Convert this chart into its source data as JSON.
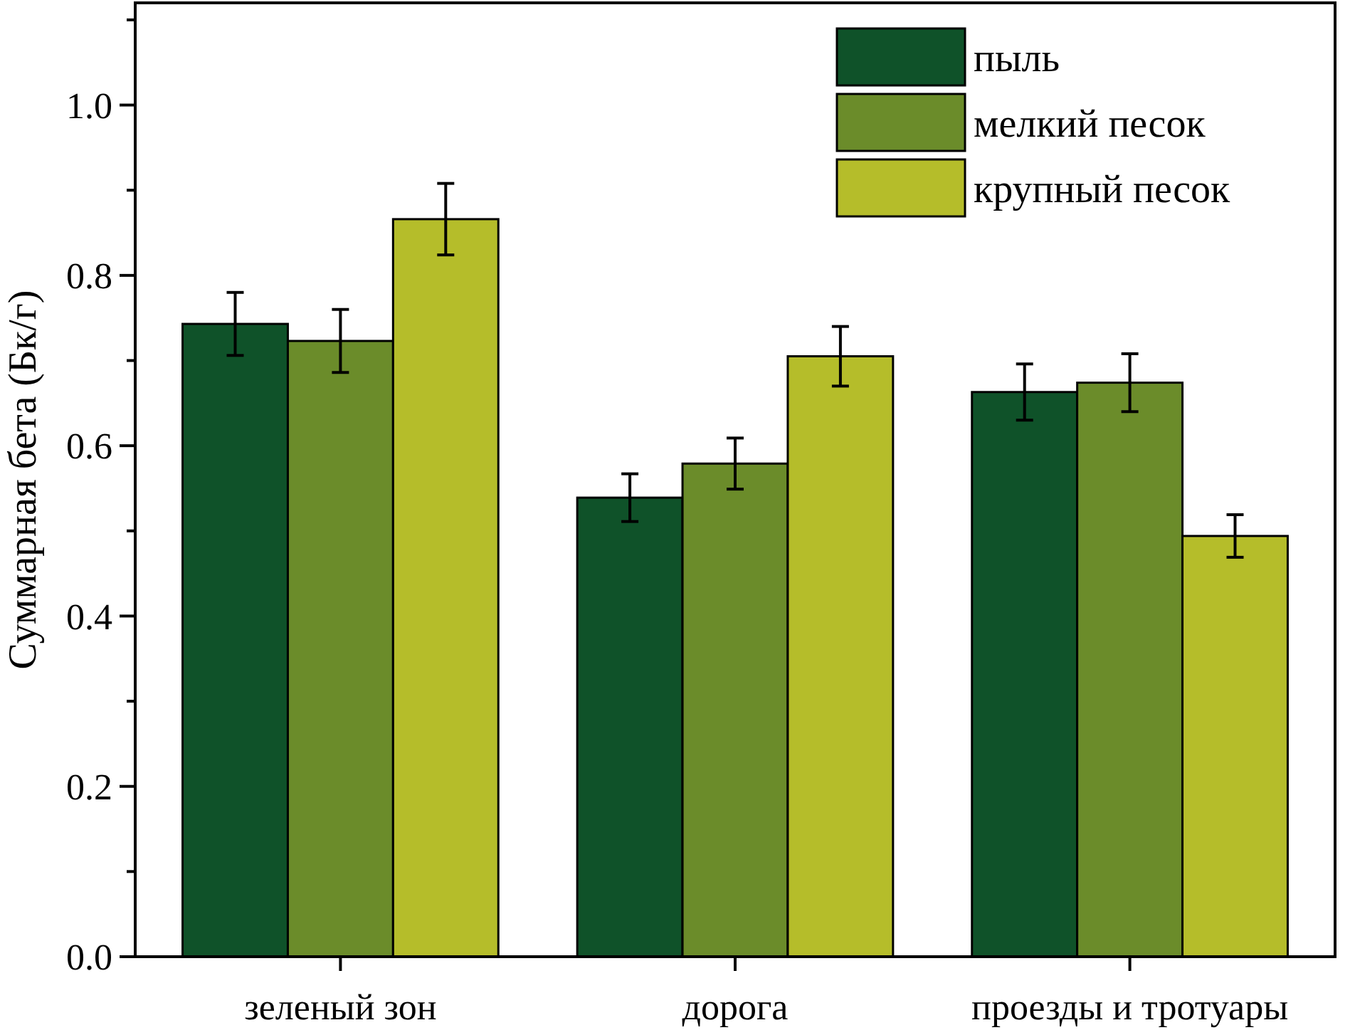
{
  "chart_data": {
    "type": "bar",
    "ylabel": "Суммарная бета (Бк/г)",
    "categories": [
      "зеленый зон",
      "дорога",
      "проезды и тротуары"
    ],
    "series": [
      {
        "name": "пыль",
        "color": "#0f5229",
        "values": [
          0.743,
          0.539,
          0.663
        ],
        "errors": [
          0.037,
          0.028,
          0.033
        ]
      },
      {
        "name": "мелкий песок",
        "color": "#6b8c2a",
        "values": [
          0.723,
          0.579,
          0.674
        ],
        "errors": [
          0.037,
          0.03,
          0.034
        ]
      },
      {
        "name": "крупный песок",
        "color": "#b5bd2a",
        "values": [
          0.866,
          0.705,
          0.494
        ],
        "errors": [
          0.042,
          0.035,
          0.025
        ]
      }
    ],
    "ylim": [
      0,
      1.12
    ],
    "yticks": [
      {
        "value": 0,
        "label": "0.0"
      },
      {
        "value": 0.1,
        "label": null
      },
      {
        "value": 0.2,
        "label": "0.2"
      },
      {
        "value": 0.3,
        "label": null
      },
      {
        "value": 0.4,
        "label": "0.4"
      },
      {
        "value": 0.5,
        "label": null
      },
      {
        "value": 0.6,
        "label": "0.6"
      },
      {
        "value": 0.7,
        "label": null
      },
      {
        "value": 0.8,
        "label": "0.8"
      },
      {
        "value": 0.9,
        "label": null
      },
      {
        "value": 1,
        "label": "1.0"
      },
      {
        "value": 1.1,
        "label": null
      }
    ],
    "grid": false,
    "legend": "top right"
  }
}
